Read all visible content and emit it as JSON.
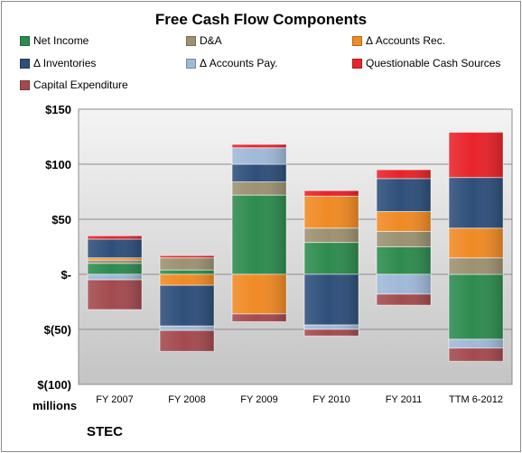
{
  "chart_data": {
    "type": "bar",
    "stacked": true,
    "title": "Free Cash Flow Components",
    "xlabel": "",
    "ylabel": "",
    "units_label": "millions",
    "ticker": "STEC",
    "ylim": [
      -100,
      150
    ],
    "yticks": [
      {
        "value": 150,
        "label": "$150"
      },
      {
        "value": 100,
        "label": "$100"
      },
      {
        "value": 50,
        "label": "$50"
      },
      {
        "value": 0,
        "label": "$-"
      },
      {
        "value": -50,
        "label": "$(50)"
      },
      {
        "value": -100,
        "label": "$(100)"
      }
    ],
    "grid": true,
    "legend_position": "top",
    "categories": [
      "FY 2007",
      "FY 2008",
      "FY 2009",
      "FY 2010",
      "FY 2011",
      "TTM 6-2012"
    ],
    "series": [
      {
        "name": "Net Income",
        "color": "#2e8b4f",
        "values": [
          10,
          4,
          72,
          29,
          25,
          -59
        ]
      },
      {
        "name": "D&A",
        "color": "#9c9171",
        "values": [
          3,
          11,
          12,
          13,
          14,
          15
        ]
      },
      {
        "name": "Δ Accounts Rec.",
        "color": "#f08a24",
        "values": [
          2,
          -10,
          -36,
          29,
          18,
          27
        ]
      },
      {
        "name": "Δ Inventories",
        "color": "#2e4f7a",
        "values": [
          17,
          -37,
          16,
          -46,
          30,
          46
        ]
      },
      {
        "name": "Δ Accounts Pay.",
        "color": "#9fb9d8",
        "values": [
          -5,
          -4,
          15,
          -4,
          -18,
          -8
        ]
      },
      {
        "name": "Questionable Cash Sources",
        "color": "#e8232a",
        "values": [
          3,
          2,
          3,
          5,
          8,
          41
        ]
      },
      {
        "name": "Capital Expenditure",
        "color": "#a34a4e",
        "values": [
          -27,
          -19,
          -7,
          -6,
          -10,
          -12
        ]
      }
    ]
  }
}
